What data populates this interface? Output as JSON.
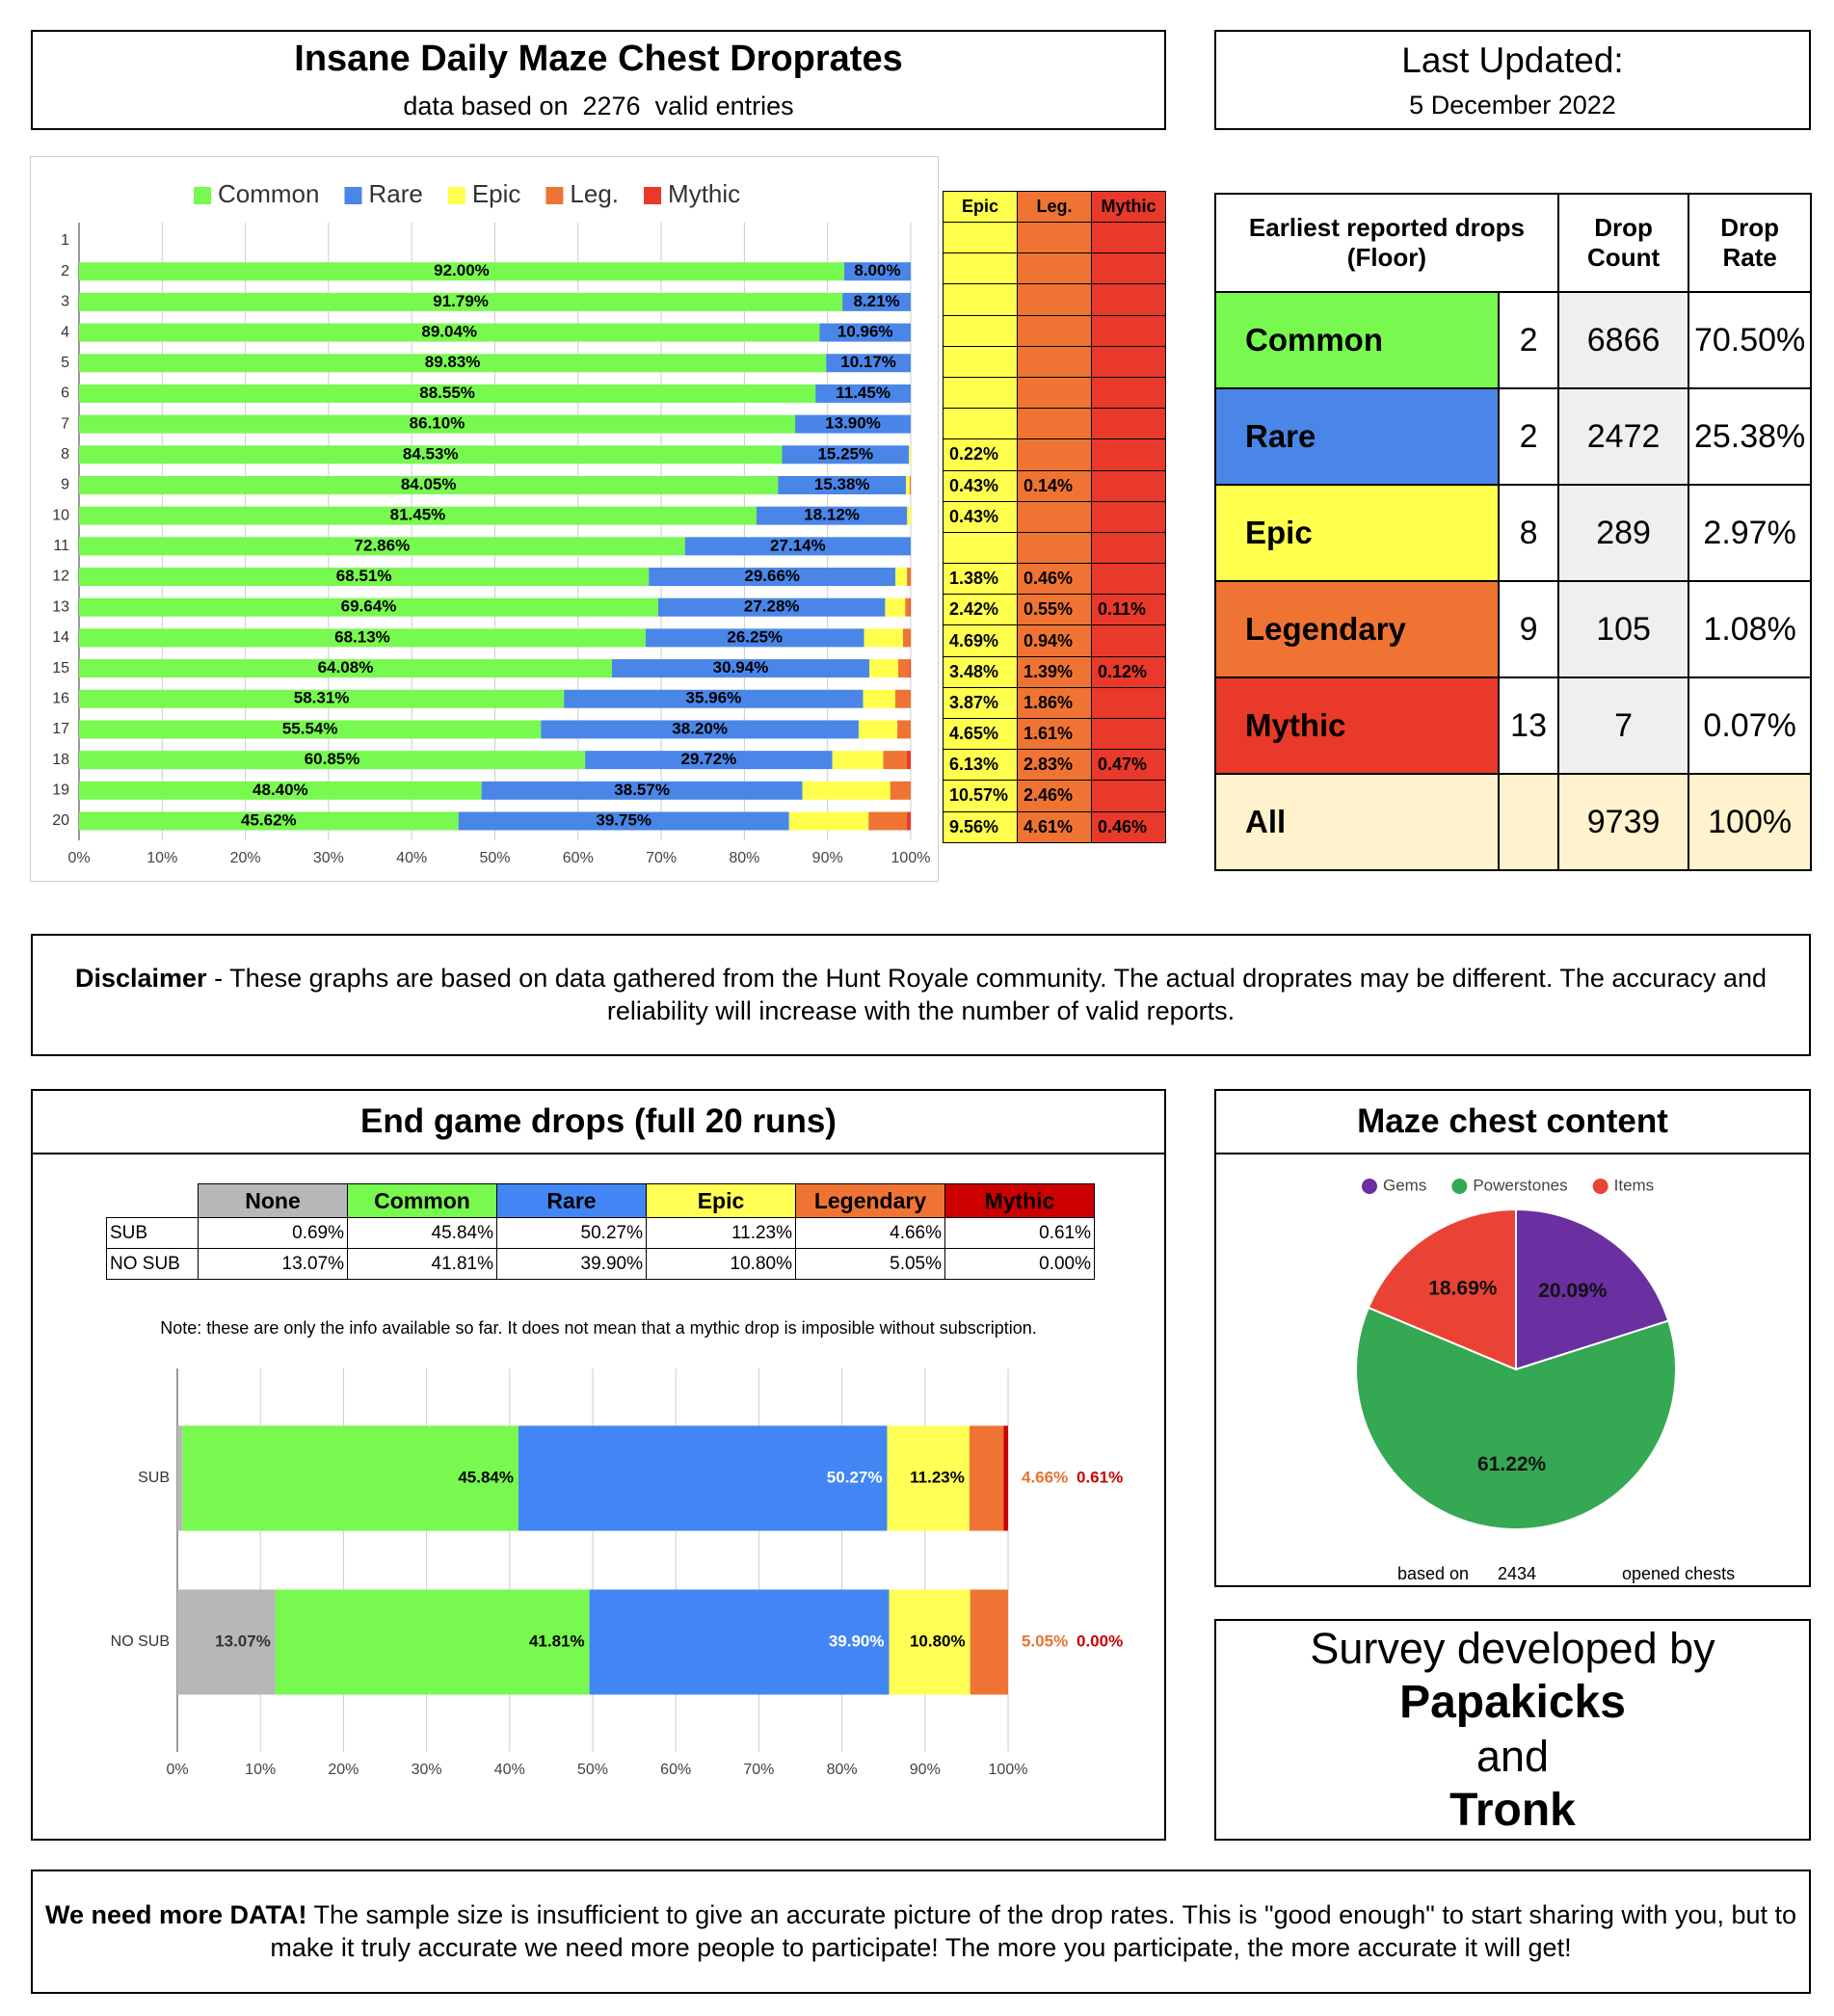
{
  "header": {
    "title": "Insane Daily Maze Chest Droprates",
    "subtitle_lead": "data based on",
    "entries": 2276,
    "subtitle_tail": "valid entries"
  },
  "last_updated": {
    "label": "Last Updated:",
    "date": "5 December 2022"
  },
  "summary_table": {
    "headers": [
      "Earliest reported drops (Floor)",
      "Drop Count",
      "Drop Rate"
    ],
    "rows": [
      [
        "Common",
        2,
        6866,
        "70.50%"
      ],
      [
        "Rare",
        2,
        2472,
        "25.38%"
      ],
      [
        "Epic",
        8,
        289,
        "2.97%"
      ],
      [
        "Legendary",
        9,
        105,
        "1.08%"
      ],
      [
        "Mythic",
        13,
        7,
        "0.07%"
      ],
      [
        "All",
        null,
        9739,
        "100%"
      ]
    ]
  },
  "disclaimer": {
    "lead": "Disclaimer",
    "text": "- These graphs are based on data gathered from the Hunt Royale community. The actual droprates may be different. The accuracy and reliability will increase with the number of valid reports."
  },
  "end_game": {
    "title": "End game drops (full 20 runs)",
    "note": "Note: these are only the info available so far. It does not mean that a mythic drop is imposible without subscription."
  },
  "maze_chest": {
    "title": "Maze chest content",
    "foot_lead": "based on",
    "count": 2434,
    "foot_tail": "opened chests"
  },
  "credits": {
    "lines": [
      "Survey developed by",
      "Papakicks",
      "and",
      "Tronk"
    ]
  },
  "footer": {
    "lead": "We need more DATA!",
    "text": "The sample size is insufficient to give an accurate picture of the drop rates. This is \"good enough\" to start sharing with you, but to make it truly accurate we need more people to participate! The more you participate, the more accurate it will get!"
  },
  "chart_data": [
    {
      "type": "bar",
      "orientation": "horizontal",
      "stack": "normal",
      "legend": "top",
      "grid": true,
      "categories": [
        "1",
        "2",
        "3",
        "4",
        "5",
        "6",
        "7",
        "8",
        "9",
        "10",
        "11",
        "12",
        "13",
        "14",
        "15",
        "16",
        "17",
        "18",
        "19",
        "20"
      ],
      "xlim": [
        0,
        100
      ],
      "xticks": [
        {
          "value": 0,
          "label": "0%"
        },
        {
          "value": 10,
          "label": "10%"
        },
        {
          "value": 20,
          "label": "20%"
        },
        {
          "value": 30,
          "label": "30%"
        },
        {
          "value": 40,
          "label": "40%"
        },
        {
          "value": 50,
          "label": "50%"
        },
        {
          "value": 60,
          "label": "60%"
        },
        {
          "value": 70,
          "label": "70%"
        },
        {
          "value": 80,
          "label": "80%"
        },
        {
          "value": 90,
          "label": "90%"
        },
        {
          "value": 100,
          "label": "100%"
        }
      ],
      "series": [
        {
          "name": "Common",
          "color": "#77f94f",
          "label_position": "center",
          "label_color": "#000",
          "values": [
            null,
            92.0,
            91.79,
            89.04,
            89.83,
            88.55,
            86.1,
            84.53,
            84.05,
            81.45,
            72.86,
            68.51,
            69.64,
            68.13,
            64.08,
            58.31,
            55.54,
            60.85,
            48.4,
            45.62
          ],
          "value_labels": [
            null,
            "92.00%",
            "91.79%",
            "89.04%",
            "89.83%",
            "88.55%",
            "86.10%",
            "84.53%",
            "84.05%",
            "81.45%",
            "72.86%",
            "68.51%",
            "69.64%",
            "68.13%",
            "64.08%",
            "58.31%",
            "55.54%",
            "60.85%",
            "48.40%",
            "45.62%"
          ]
        },
        {
          "name": "Rare",
          "color": "#4a86e8",
          "label_position": "center",
          "label_color": "#000",
          "values": [
            null,
            8.0,
            8.21,
            10.96,
            10.17,
            11.45,
            13.9,
            15.25,
            15.38,
            18.12,
            27.14,
            29.66,
            27.28,
            26.25,
            30.94,
            35.96,
            38.2,
            29.72,
            38.57,
            39.75
          ],
          "value_labels": [
            null,
            "8.00%",
            "8.21%",
            "10.96%",
            "10.17%",
            "11.45%",
            "13.90%",
            "15.25%",
            "15.38%",
            "18.12%",
            "27.14%",
            "29.66%",
            "27.28%",
            "26.25%",
            "30.94%",
            "35.96%",
            "38.20%",
            "29.72%",
            "38.57%",
            "39.75%"
          ]
        },
        {
          "name": "Epic",
          "color": "#ffff4d",
          "values": [
            null,
            null,
            null,
            null,
            null,
            null,
            null,
            0.22,
            0.43,
            0.43,
            null,
            1.38,
            2.42,
            4.69,
            3.48,
            3.87,
            4.65,
            6.13,
            10.57,
            9.56
          ],
          "value_labels": [
            null,
            null,
            null,
            null,
            null,
            null,
            null,
            "0.22%",
            "0.43%",
            "0.43%",
            null,
            "1.38%",
            "2.42%",
            "4.69%",
            "3.48%",
            "3.87%",
            "4.65%",
            "6.13%",
            "10.57%",
            "9.56%"
          ]
        },
        {
          "name": "Leg.",
          "color": "#ef7433",
          "values": [
            null,
            null,
            null,
            null,
            null,
            null,
            null,
            null,
            0.14,
            null,
            null,
            0.46,
            0.55,
            0.94,
            1.39,
            1.86,
            1.61,
            2.83,
            2.46,
            4.61
          ],
          "value_labels": [
            null,
            null,
            null,
            null,
            null,
            null,
            null,
            null,
            "0.14%",
            null,
            null,
            "0.46%",
            "0.55%",
            "0.94%",
            "1.39%",
            "1.86%",
            "1.61%",
            "2.83%",
            "2.46%",
            "4.61%"
          ]
        },
        {
          "name": "Mythic",
          "color": "#e8392b",
          "values": [
            null,
            null,
            null,
            null,
            null,
            null,
            null,
            null,
            null,
            null,
            null,
            null,
            0.11,
            null,
            0.12,
            null,
            null,
            0.47,
            null,
            0.46
          ],
          "value_labels": [
            null,
            null,
            null,
            null,
            null,
            null,
            null,
            null,
            null,
            null,
            null,
            null,
            "0.11%",
            null,
            "0.12%",
            null,
            null,
            "0.47%",
            null,
            "0.46%"
          ]
        }
      ]
    },
    {
      "type": "bar",
      "orientation": "horizontal",
      "stack": "percent",
      "grid": true,
      "categories": [
        "SUB",
        "NO SUB"
      ],
      "xlim": [
        0,
        100
      ],
      "xticks": [
        {
          "value": 0,
          "label": "0%"
        },
        {
          "value": 10,
          "label": "10%"
        },
        {
          "value": 20,
          "label": "20%"
        },
        {
          "value": 30,
          "label": "30%"
        },
        {
          "value": 40,
          "label": "40%"
        },
        {
          "value": 50,
          "label": "50%"
        },
        {
          "value": 60,
          "label": "60%"
        },
        {
          "value": 70,
          "label": "70%"
        },
        {
          "value": 80,
          "label": "80%"
        },
        {
          "value": 90,
          "label": "90%"
        },
        {
          "value": 100,
          "label": "100%"
        }
      ],
      "series": [
        {
          "name": "None",
          "color": "#b7b7b7",
          "label_position": "inside",
          "label_color": "#333",
          "values": [
            0.69,
            13.07
          ],
          "value_labels": [
            "0.69%",
            "13.07%"
          ]
        },
        {
          "name": "Common",
          "color": "#77f94f",
          "label_position": "inside",
          "label_color": "#000",
          "values": [
            45.84,
            41.81
          ],
          "value_labels": [
            "45.84%",
            "41.81%"
          ]
        },
        {
          "name": "Rare",
          "color": "#4285f4",
          "label_position": "inside",
          "label_color": "#fff",
          "values": [
            50.27,
            39.9
          ],
          "value_labels": [
            "50.27%",
            "39.90%"
          ]
        },
        {
          "name": "Epic",
          "color": "#ffff55",
          "label_position": "inside",
          "label_color": "#000",
          "values": [
            11.23,
            10.8
          ],
          "value_labels": [
            "11.23%",
            "10.80%"
          ]
        },
        {
          "name": "Legendary",
          "color": "#ef7433",
          "label_position": "outside",
          "label_color": "#e8732e",
          "values": [
            4.66,
            5.05
          ],
          "value_labels": [
            "4.66%",
            "5.05%"
          ]
        },
        {
          "name": "Mythic",
          "color": "#cc0000",
          "label_position": "outside",
          "label_color": "#cc0000",
          "values": [
            0.61,
            0.0
          ],
          "value_labels": [
            "0.61%",
            "0.00%"
          ]
        }
      ]
    },
    {
      "type": "pie",
      "legend": "top",
      "categories": [
        "Gems",
        "Powerstones",
        "Items"
      ],
      "values": [
        20.09,
        61.22,
        18.69
      ],
      "value_labels": [
        "20.09%",
        "61.22%",
        "18.69%"
      ],
      "colors": [
        "#6a2fa0",
        "#34a853",
        "#ea4335"
      ]
    }
  ]
}
